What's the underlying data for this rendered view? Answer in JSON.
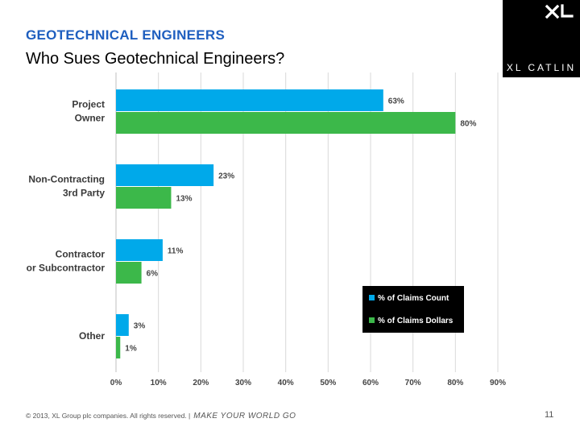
{
  "header": {
    "heading": "GEOTECHNICAL ENGINEERS",
    "title": "Who Sues Geotechnical Engineers?",
    "logo_text": "XL CATLIN"
  },
  "footer": {
    "copyright": "© 2013, XL Group plc companies. All rights reserved. |",
    "tagline": "MAKE YOUR WORLD GO",
    "page_number": "11"
  },
  "colors": {
    "heading": "#1f5fbf",
    "count": "#00a9ea",
    "dollars": "#3cb84a"
  },
  "chart_data": {
    "type": "bar",
    "orientation": "horizontal",
    "categories": [
      [
        "Project",
        "Owner"
      ],
      [
        "Non-Contracting",
        "3rd Party"
      ],
      [
        "Contractor",
        "or Subcontractor"
      ],
      [
        "Other"
      ]
    ],
    "series": [
      {
        "name": "% of Claims Count",
        "values": [
          63,
          23,
          11,
          3
        ],
        "color": "#00a9ea"
      },
      {
        "name": "% of Claims Dollars",
        "values": [
          80,
          13,
          6,
          1
        ],
        "color": "#3cb84a"
      }
    ],
    "xlim": [
      0,
      90
    ],
    "xticks": [
      0,
      10,
      20,
      30,
      40,
      50,
      60,
      70,
      80,
      90
    ],
    "tick_suffix": "%",
    "data_label_suffix": "%",
    "grid": true,
    "legend": "right"
  }
}
